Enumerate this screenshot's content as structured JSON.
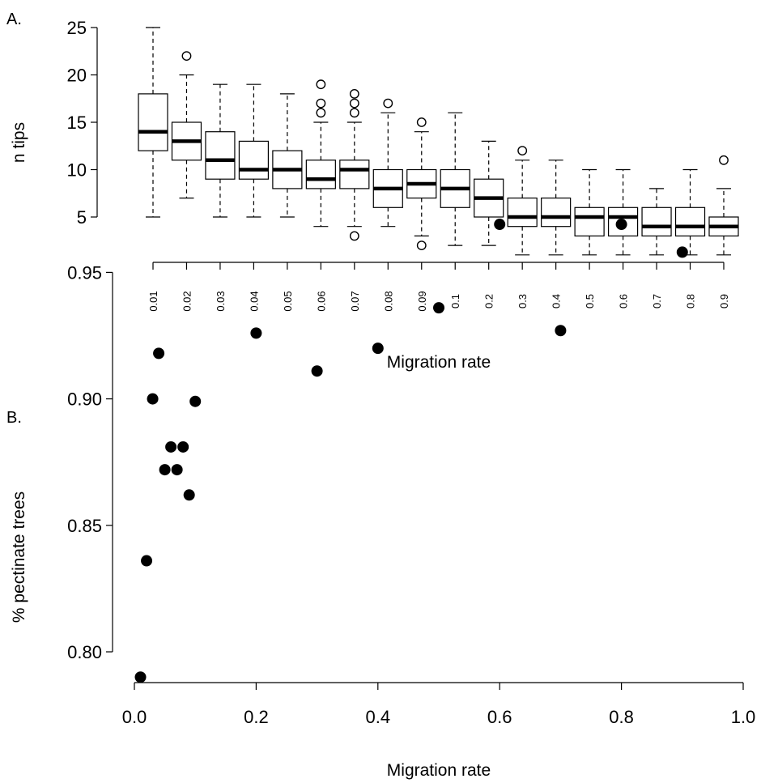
{
  "chart_data": [
    {
      "panel_label": "A.",
      "type": "box",
      "xlabel": "Migration rate",
      "ylabel": "n tips",
      "categories": [
        "0.01",
        "0.02",
        "0.03",
        "0.04",
        "0.05",
        "0.06",
        "0.07",
        "0.08",
        "0.09",
        "0.1",
        "0.2",
        "0.3",
        "0.4",
        "0.5",
        "0.6",
        "0.7",
        "0.8",
        "0.9"
      ],
      "yticks": [
        5,
        10,
        15,
        20,
        25
      ],
      "ytick_labels": [
        "5",
        "10",
        "15",
        "20",
        "25"
      ],
      "ylim": [
        0.5,
        25
      ],
      "boxes": [
        {
          "min": 5,
          "q1": 12,
          "median": 14,
          "q3": 18,
          "max": 25,
          "outliers": []
        },
        {
          "min": 7,
          "q1": 11,
          "median": 13,
          "q3": 15,
          "max": 20,
          "outliers": [
            22
          ]
        },
        {
          "min": 5,
          "q1": 9,
          "median": 11,
          "q3": 14,
          "max": 19,
          "outliers": []
        },
        {
          "min": 5,
          "q1": 9,
          "median": 10,
          "q3": 13,
          "max": 19,
          "outliers": []
        },
        {
          "min": 5,
          "q1": 8,
          "median": 10,
          "q3": 12,
          "max": 18,
          "outliers": []
        },
        {
          "min": 4,
          "q1": 8,
          "median": 9,
          "q3": 11,
          "max": 15,
          "outliers": [
            16,
            17,
            19
          ]
        },
        {
          "min": 4,
          "q1": 8,
          "median": 10,
          "q3": 11,
          "max": 15,
          "outliers": [
            3,
            16,
            17,
            18
          ]
        },
        {
          "min": 4,
          "q1": 6,
          "median": 8,
          "q3": 10,
          "max": 16,
          "outliers": [
            17
          ]
        },
        {
          "min": 3,
          "q1": 7,
          "median": 8.5,
          "q3": 10,
          "max": 14,
          "outliers": [
            2,
            15
          ]
        },
        {
          "min": 2,
          "q1": 6,
          "median": 8,
          "q3": 10,
          "max": 16,
          "outliers": []
        },
        {
          "min": 2,
          "q1": 5,
          "median": 7,
          "q3": 9,
          "max": 13,
          "outliers": []
        },
        {
          "min": 1,
          "q1": 4,
          "median": 5,
          "q3": 7,
          "max": 11,
          "outliers": [
            12
          ]
        },
        {
          "min": 1,
          "q1": 4,
          "median": 5,
          "q3": 7,
          "max": 11,
          "outliers": []
        },
        {
          "min": 1,
          "q1": 3,
          "median": 5,
          "q3": 6,
          "max": 10,
          "outliers": []
        },
        {
          "min": 1,
          "q1": 3,
          "median": 5,
          "q3": 6,
          "max": 10,
          "outliers": []
        },
        {
          "min": 1,
          "q1": 3,
          "median": 4,
          "q3": 6,
          "max": 8,
          "outliers": []
        },
        {
          "min": 1,
          "q1": 3,
          "median": 4,
          "q3": 6,
          "max": 10,
          "outliers": []
        },
        {
          "min": 1,
          "q1": 3,
          "median": 4,
          "q3": 5,
          "max": 8,
          "outliers": [
            11
          ]
        }
      ]
    },
    {
      "panel_label": "B.",
      "type": "scatter",
      "xlabel": "Migration rate",
      "ylabel": "% pectinate trees",
      "xlim": [
        0.0,
        1.0
      ],
      "ylim": [
        0.79,
        0.975
      ],
      "xticks": [
        0.0,
        0.2,
        0.4,
        0.6,
        0.8,
        1.0
      ],
      "xtick_labels": [
        "0.0",
        "0.2",
        "0.4",
        "0.6",
        "0.8",
        "1.0"
      ],
      "yticks": [
        0.8,
        0.85,
        0.9,
        0.95
      ],
      "ytick_labels": [
        "0.80",
        "0.85",
        "0.90",
        "0.95"
      ],
      "x": [
        0.01,
        0.02,
        0.03,
        0.04,
        0.05,
        0.06,
        0.07,
        0.08,
        0.09,
        0.1,
        0.2,
        0.3,
        0.4,
        0.5,
        0.6,
        0.7,
        0.8,
        0.9
      ],
      "y": [
        0.79,
        0.836,
        0.9,
        0.918,
        0.872,
        0.881,
        0.872,
        0.881,
        0.862,
        0.899,
        0.926,
        0.911,
        0.92,
        0.936,
        0.969,
        0.927,
        0.969,
        0.958
      ]
    }
  ]
}
